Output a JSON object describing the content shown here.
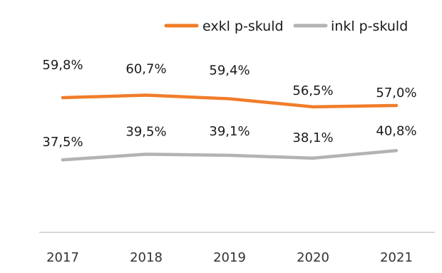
{
  "chart_data": {
    "type": "line",
    "categories": [
      "2017",
      "2018",
      "2019",
      "2020",
      "2021"
    ],
    "series": [
      {
        "name": "exkl p-skuld",
        "color": "#f07d2a",
        "values": [
          59.8,
          60.7,
          59.4,
          56.5,
          57.0
        ],
        "labels": [
          "59,8%",
          "60,7%",
          "59,4%",
          "56,5%",
          "57,0%"
        ]
      },
      {
        "name": "inkl p-skuld",
        "color": "#b3b3b3",
        "values": [
          37.5,
          39.5,
          39.1,
          38.1,
          40.8
        ],
        "labels": [
          "37,5%",
          "39,5%",
          "39,1%",
          "38,1%",
          "40,8%"
        ]
      }
    ],
    "axis_color": "#cccccc",
    "legend_position": "top-right",
    "grid": false
  }
}
